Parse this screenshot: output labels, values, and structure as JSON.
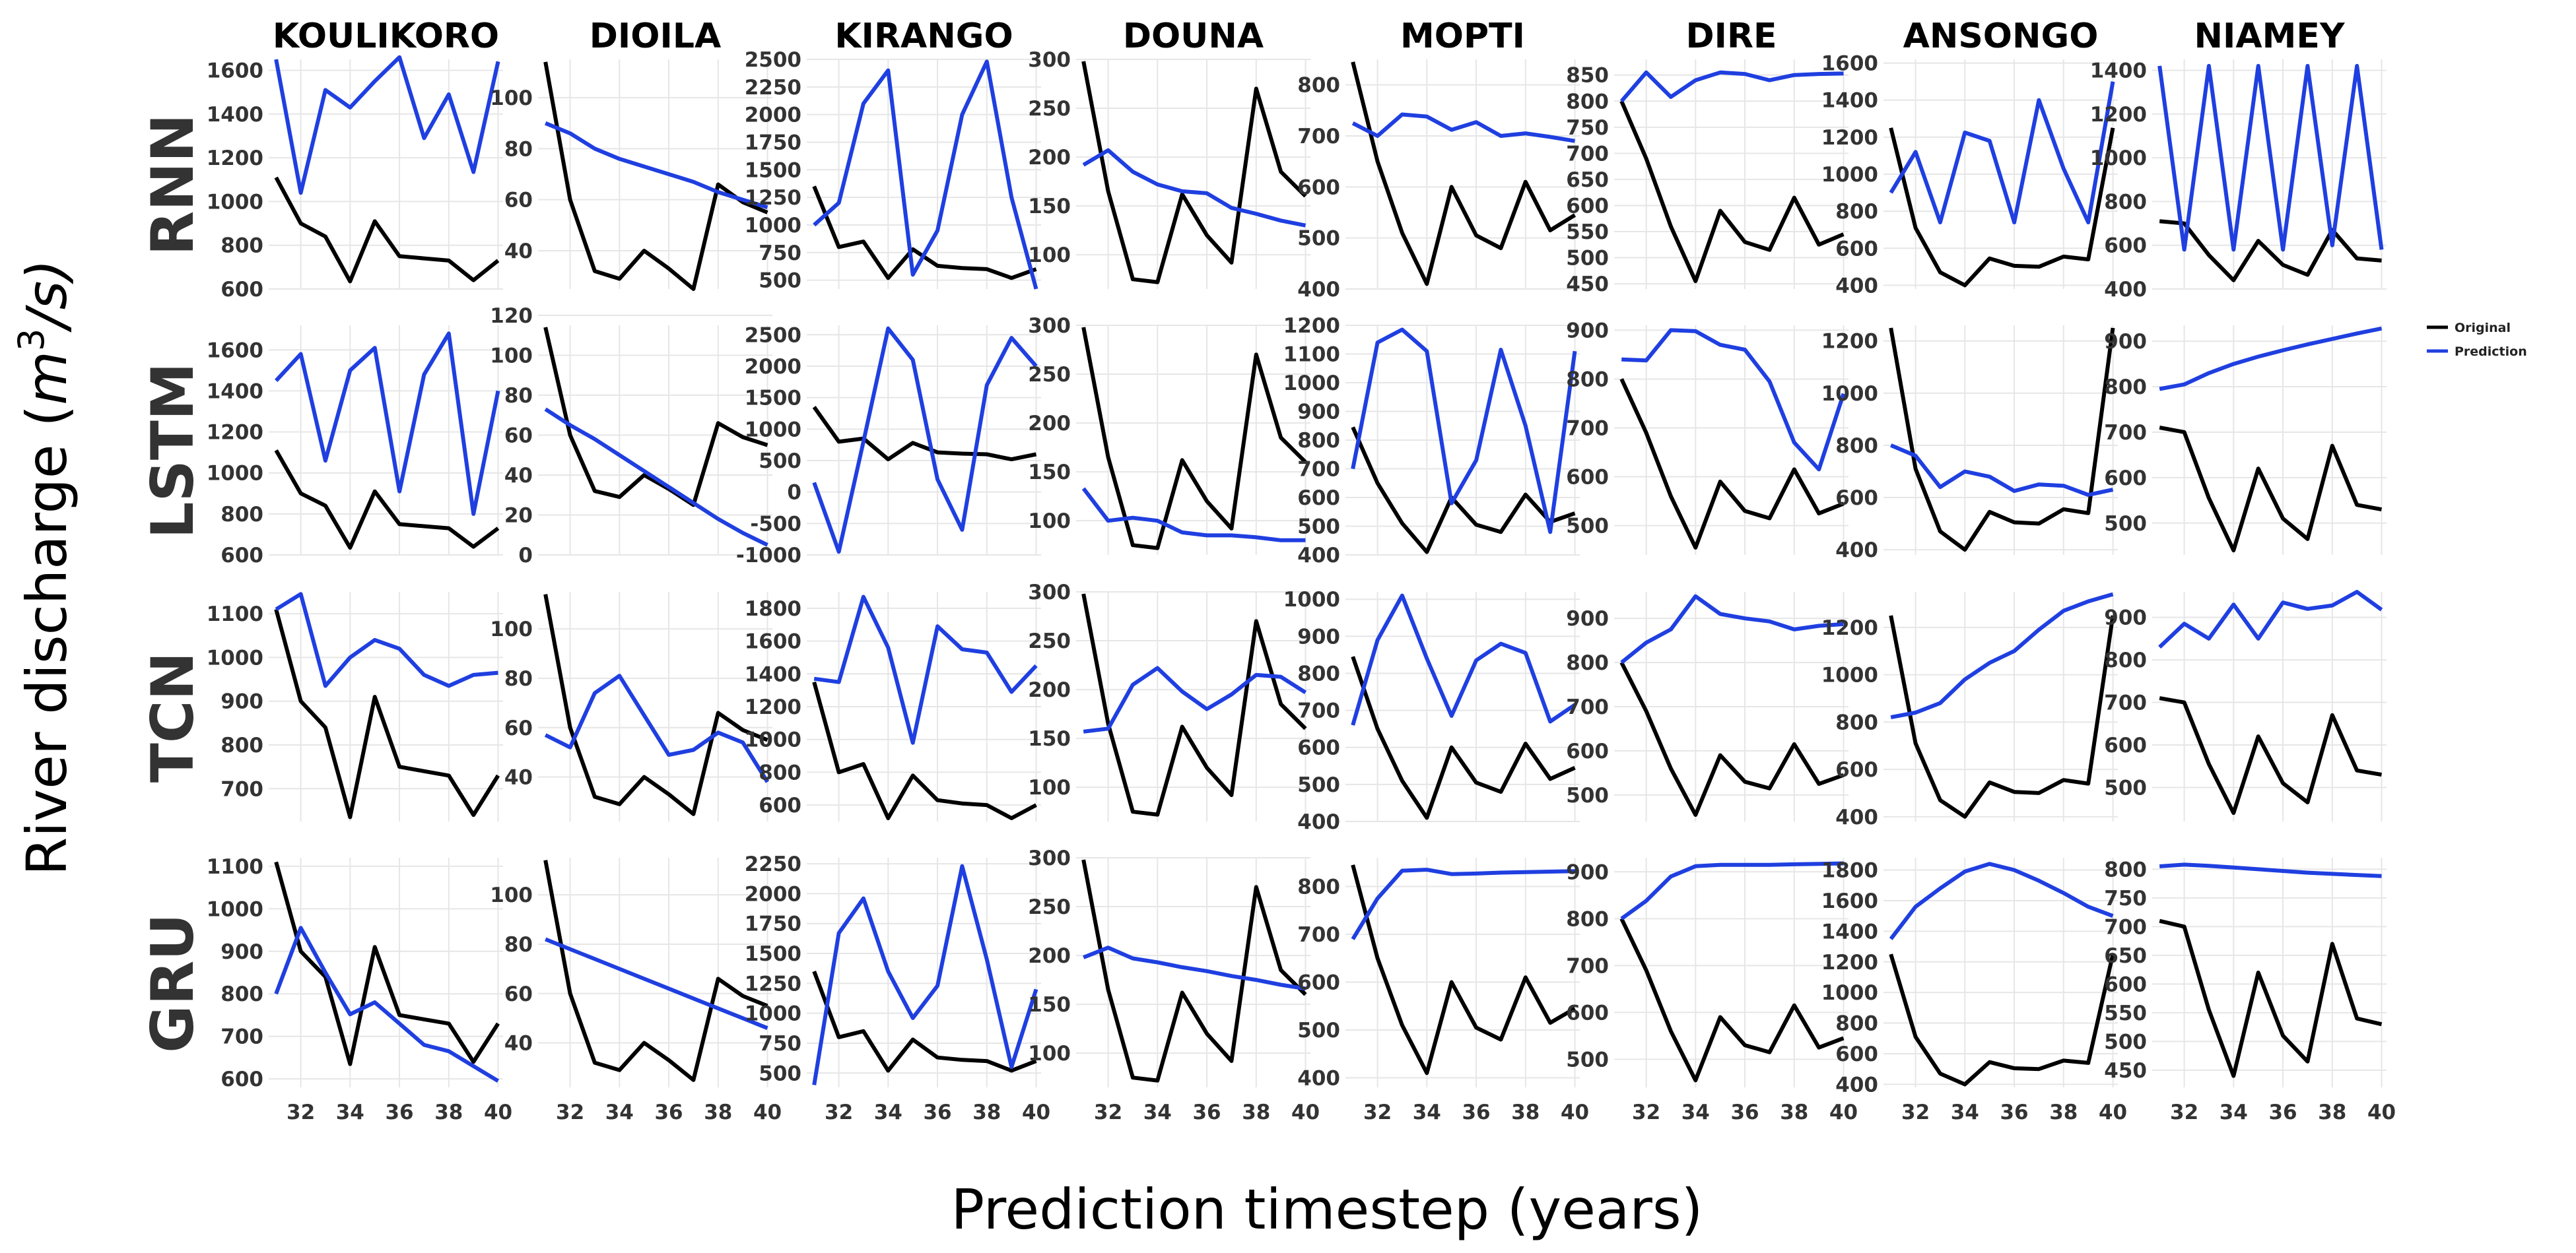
{
  "figure": {
    "xlabel": "Prediction timestep (years)",
    "ylabel_main": "River discharge (",
    "ylabel_unit": "m",
    "ylabel_exp": "3",
    "ylabel_tail": "/s)",
    "colors": {
      "original": "#000000",
      "prediction": "#1f3fe0",
      "grid": "#e6e6e6"
    }
  },
  "legend": {
    "original": "Original",
    "prediction": "Prediction"
  },
  "chart_data": {
    "type": "line",
    "x": [
      31,
      32,
      33,
      34,
      35,
      36,
      37,
      38,
      39,
      40
    ],
    "xticks": [
      32,
      34,
      36,
      38,
      40
    ],
    "xlim": [
      30.7,
      40.2
    ],
    "stations": [
      "KOULIKORO",
      "DIOILA",
      "KIRANGO",
      "DOUNA",
      "MOPTI",
      "DIRE",
      "ANSONGO",
      "NIAMEY"
    ],
    "models": [
      "RNN",
      "LSTM",
      "TCN",
      "GRU"
    ],
    "original": {
      "KOULIKORO": [
        1110,
        900,
        840,
        635,
        910,
        750,
        740,
        730,
        640,
        730
      ],
      "DIOILA": [
        114,
        60,
        32,
        29,
        40,
        33,
        25,
        66,
        59,
        55
      ],
      "KIRANGO": [
        1350,
        800,
        850,
        520,
        780,
        630,
        610,
        600,
        520,
        600
      ],
      "DOUNA": [
        298,
        165,
        75,
        72,
        162,
        120,
        92,
        270,
        185,
        160
      ],
      "MOPTI": [
        845,
        650,
        510,
        410,
        600,
        505,
        480,
        610,
        515,
        545
      ],
      "DIRE": [
        800,
        690,
        560,
        455,
        590,
        530,
        515,
        615,
        525,
        545
      ],
      "ANSONGO": [
        1250,
        710,
        470,
        400,
        545,
        505,
        500,
        555,
        540,
        1250
      ],
      "NIAMEY": [
        710,
        700,
        555,
        440,
        620,
        510,
        465,
        670,
        540,
        530
      ]
    },
    "panels": [
      {
        "row": "RNN",
        "station": "KOULIKORO",
        "ylim": [
          600,
          1650
        ],
        "yticks": [
          600,
          800,
          1000,
          1200,
          1400,
          1600
        ],
        "prediction": [
          1650,
          1040,
          1510,
          1430,
          1550,
          1660,
          1290,
          1490,
          1135,
          1640
        ]
      },
      {
        "row": "RNN",
        "station": "DIOILA",
        "ylim": [
          25,
          115
        ],
        "yticks": [
          40,
          60,
          80,
          100
        ],
        "prediction": [
          90,
          86,
          80,
          76,
          73,
          70,
          67,
          63,
          60,
          57
        ]
      },
      {
        "row": "RNN",
        "station": "KIRANGO",
        "ylim": [
          420,
          2500
        ],
        "yticks": [
          500,
          750,
          1000,
          1250,
          1500,
          1750,
          2000,
          2250,
          2500
        ],
        "prediction": [
          1000,
          1200,
          2100,
          2400,
          550,
          950,
          2000,
          2480,
          1250,
          420
        ]
      },
      {
        "row": "RNN",
        "station": "DOUNA",
        "ylim": [
          65,
          300
        ],
        "yticks": [
          100,
          150,
          200,
          250,
          300
        ],
        "prediction": [
          192,
          207,
          185,
          172,
          165,
          163,
          148,
          142,
          135,
          130
        ]
      },
      {
        "row": "RNN",
        "station": "MOPTI",
        "ylim": [
          400,
          850
        ],
        "yticks": [
          400,
          500,
          600,
          700,
          800
        ],
        "prediction": [
          725,
          700,
          742,
          738,
          712,
          727,
          700,
          705,
          698,
          690
        ]
      },
      {
        "row": "RNN",
        "station": "DIRE",
        "ylim": [
          440,
          880
        ],
        "yticks": [
          450,
          500,
          550,
          600,
          650,
          700,
          750,
          800,
          850
        ],
        "prediction": [
          800,
          855,
          808,
          840,
          855,
          852,
          840,
          850,
          852,
          853
        ]
      },
      {
        "row": "RNN",
        "station": "ANSONGO",
        "ylim": [
          380,
          1620
        ],
        "yticks": [
          400,
          600,
          800,
          1000,
          1200,
          1400,
          1600
        ],
        "prediction": [
          900,
          1120,
          740,
          1225,
          1180,
          740,
          1400,
          1030,
          740,
          1500
        ]
      },
      {
        "row": "RNN",
        "station": "NIAMEY",
        "ylim": [
          400,
          1450
        ],
        "yticks": [
          400,
          600,
          800,
          1000,
          1200,
          1400
        ],
        "prediction": [
          1420,
          580,
          1420,
          580,
          1420,
          580,
          1420,
          600,
          1420,
          580
        ]
      },
      {
        "row": "LSTM",
        "station": "KOULIKORO",
        "ylim": [
          600,
          1720
        ],
        "yticks": [
          600,
          800,
          1000,
          1200,
          1400,
          1600
        ],
        "prediction": [
          1450,
          1580,
          1060,
          1500,
          1610,
          910,
          1480,
          1680,
          800,
          1400
        ]
      },
      {
        "row": "LSTM",
        "station": "DIOILA",
        "ylim": [
          0,
          115
        ],
        "yticks": [
          0,
          20,
          40,
          60,
          80,
          100,
          120
        ],
        "prediction": [
          73,
          65,
          58,
          50,
          42,
          34,
          26,
          18,
          11,
          5
        ]
      },
      {
        "row": "LSTM",
        "station": "KIRANGO",
        "ylim": [
          -1000,
          2650
        ],
        "yticks": [
          -1000,
          -500,
          0,
          500,
          1000,
          1500,
          2000,
          2500
        ],
        "prediction": [
          150,
          -950,
          800,
          2600,
          2100,
          200,
          -600,
          1700,
          2450,
          2000
        ]
      },
      {
        "row": "LSTM",
        "station": "DOUNA",
        "ylim": [
          65,
          300
        ],
        "yticks": [
          100,
          150,
          200,
          250,
          300
        ],
        "prediction": [
          133,
          100,
          103,
          100,
          88,
          85,
          85,
          83,
          80,
          80
        ]
      },
      {
        "row": "LSTM",
        "station": "MOPTI",
        "ylim": [
          400,
          1200
        ],
        "yticks": [
          400,
          500,
          600,
          700,
          800,
          900,
          1000,
          1100,
          1200
        ],
        "prediction": [
          700,
          1140,
          1185,
          1110,
          580,
          730,
          1115,
          850,
          480,
          1110
        ]
      },
      {
        "row": "LSTM",
        "station": "DIRE",
        "ylim": [
          440,
          910
        ],
        "yticks": [
          500,
          600,
          700,
          800,
          900
        ],
        "prediction": [
          840,
          838,
          900,
          898,
          870,
          860,
          795,
          670,
          615,
          770
        ]
      },
      {
        "row": "LSTM",
        "station": "ANSONGO",
        "ylim": [
          380,
          1260
        ],
        "yticks": [
          400,
          600,
          800,
          1000,
          1200
        ],
        "prediction": [
          800,
          760,
          640,
          700,
          680,
          625,
          650,
          645,
          610,
          630
        ]
      },
      {
        "row": "LSTM",
        "station": "NIAMEY",
        "ylim": [
          430,
          935
        ],
        "yticks": [
          500,
          600,
          700,
          800,
          900
        ],
        "prediction": [
          795,
          805,
          830,
          850,
          866,
          880,
          893,
          905,
          917,
          928
        ]
      },
      {
        "row": "TCN",
        "station": "KOULIKORO",
        "ylim": [
          625,
          1150
        ],
        "yticks": [
          700,
          800,
          900,
          1000,
          1100
        ],
        "prediction": [
          1110,
          1145,
          935,
          1000,
          1040,
          1020,
          960,
          935,
          960,
          965
        ]
      },
      {
        "row": "TCN",
        "station": "DIOILA",
        "ylim": [
          22,
          115
        ],
        "yticks": [
          40,
          60,
          80,
          100
        ],
        "prediction": [
          57,
          52,
          74,
          81,
          65,
          49,
          51,
          58,
          54,
          38
        ]
      },
      {
        "row": "TCN",
        "station": "KIRANGO",
        "ylim": [
          500,
          1900
        ],
        "yticks": [
          600,
          800,
          1000,
          1200,
          1400,
          1600,
          1800
        ],
        "prediction": [
          1370,
          1350,
          1870,
          1560,
          980,
          1690,
          1550,
          1530,
          1290,
          1450
        ]
      },
      {
        "row": "TCN",
        "station": "DOUNA",
        "ylim": [
          65,
          300
        ],
        "yticks": [
          100,
          150,
          200,
          250,
          300
        ],
        "prediction": [
          157,
          160,
          205,
          222,
          198,
          180,
          195,
          215,
          213,
          197
        ]
      },
      {
        "row": "TCN",
        "station": "MOPTI",
        "ylim": [
          400,
          1020
        ],
        "yticks": [
          400,
          500,
          600,
          700,
          800,
          900,
          1000
        ],
        "prediction": [
          660,
          890,
          1010,
          840,
          685,
          835,
          880,
          855,
          670,
          715
        ]
      },
      {
        "row": "TCN",
        "station": "DIRE",
        "ylim": [
          440,
          960
        ],
        "yticks": [
          500,
          600,
          700,
          800,
          900
        ],
        "prediction": [
          800,
          845,
          875,
          950,
          910,
          900,
          893,
          875,
          883,
          887
        ]
      },
      {
        "row": "TCN",
        "station": "ANSONGO",
        "ylim": [
          380,
          1350
        ],
        "yticks": [
          400,
          600,
          800,
          1000,
          1200
        ],
        "prediction": [
          820,
          840,
          880,
          980,
          1050,
          1100,
          1190,
          1270,
          1310,
          1340
        ]
      },
      {
        "row": "TCN",
        "station": "NIAMEY",
        "ylim": [
          420,
          960
        ],
        "yticks": [
          500,
          600,
          700,
          800,
          900
        ],
        "prediction": [
          830,
          885,
          850,
          930,
          850,
          935,
          920,
          928,
          960,
          918
        ]
      },
      {
        "row": "GRU",
        "station": "KOULIKORO",
        "ylim": [
          580,
          1120
        ],
        "yticks": [
          600,
          700,
          800,
          900,
          1000,
          1100
        ],
        "prediction": [
          800,
          955,
          850,
          752,
          780,
          730,
          680,
          665,
          630,
          595
        ]
      },
      {
        "row": "GRU",
        "station": "DIOILA",
        "ylim": [
          22,
          115
        ],
        "yticks": [
          40,
          60,
          80,
          100
        ],
        "prediction": [
          82,
          78,
          74,
          70,
          66,
          62,
          58,
          54,
          50,
          46
        ]
      },
      {
        "row": "GRU",
        "station": "KIRANGO",
        "ylim": [
          380,
          2300
        ],
        "yticks": [
          500,
          750,
          1000,
          1250,
          1500,
          1750,
          2000,
          2250
        ],
        "prediction": [
          400,
          1670,
          1960,
          1350,
          960,
          1230,
          2230,
          1450,
          550,
          1200
        ]
      },
      {
        "row": "GRU",
        "station": "DOUNA",
        "ylim": [
          65,
          300
        ],
        "yticks": [
          100,
          150,
          200,
          250,
          300
        ],
        "prediction": [
          198,
          208,
          197,
          193,
          188,
          184,
          179,
          175,
          170,
          166
        ]
      },
      {
        "row": "GRU",
        "station": "MOPTI",
        "ylim": [
          380,
          860
        ],
        "yticks": [
          400,
          500,
          600,
          700,
          800
        ],
        "prediction": [
          690,
          775,
          833,
          835,
          826,
          827,
          829,
          830,
          831,
          832
        ]
      },
      {
        "row": "GRU",
        "station": "DIRE",
        "ylim": [
          440,
          930
        ],
        "yticks": [
          500,
          600,
          700,
          800,
          900
        ],
        "prediction": [
          800,
          838,
          890,
          912,
          915,
          915,
          915,
          916,
          917,
          918
        ]
      },
      {
        "row": "GRU",
        "station": "ANSONGO",
        "ylim": [
          380,
          1880
        ],
        "yticks": [
          400,
          600,
          800,
          1000,
          1200,
          1400,
          1600,
          1800
        ],
        "prediction": [
          1350,
          1560,
          1680,
          1790,
          1840,
          1800,
          1730,
          1650,
          1560,
          1500
        ]
      },
      {
        "row": "GRU",
        "station": "NIAMEY",
        "ylim": [
          420,
          820
        ],
        "yticks": [
          450,
          500,
          550,
          600,
          650,
          700,
          750,
          800
        ],
        "prediction": [
          805,
          808,
          806,
          803,
          800,
          797,
          794,
          792,
          790,
          788
        ]
      }
    ]
  }
}
